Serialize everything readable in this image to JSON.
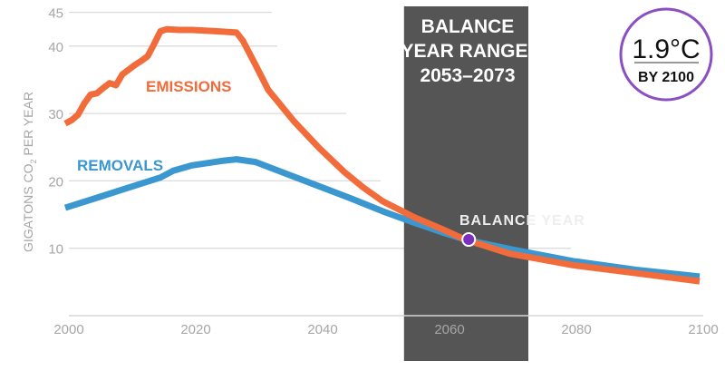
{
  "chart_data": {
    "type": "line",
    "ylabel": "GIGATONS CO",
    "ylabel_sub": "2",
    "ylabel_suffix": " PER YEAR",
    "xlim": [
      2000,
      2100
    ],
    "ylim": [
      0,
      45
    ],
    "xticks": [
      2000,
      2020,
      2040,
      2060,
      2080,
      2100
    ],
    "yticks": [
      10,
      20,
      30,
      40,
      45
    ],
    "grid": true,
    "series": [
      {
        "name": "EMISSIONS",
        "color": "#f26b3a",
        "x": [
          2000,
          2001,
          2002,
          2003,
          2004,
          2005,
          2006,
          2007,
          2008,
          2009,
          2010,
          2011,
          2012,
          2013,
          2014,
          2015,
          2016,
          2018,
          2020,
          2024,
          2027,
          2028,
          2030,
          2032,
          2036,
          2040,
          2044,
          2047,
          2050,
          2055,
          2060,
          2063,
          2070,
          2080,
          2090,
          2100
        ],
        "y": [
          28.5,
          29,
          29.8,
          31.5,
          32.8,
          33,
          33.8,
          34.5,
          34.2,
          35.8,
          36.5,
          37.2,
          37.8,
          38.5,
          40.3,
          42.2,
          42.5,
          42.4,
          42.4,
          42.2,
          42.0,
          40.8,
          37.2,
          33.5,
          28.9,
          24.9,
          21.3,
          19.0,
          17.0,
          14.6,
          12.6,
          11.3,
          9.2,
          7.5,
          6.3,
          5.1
        ]
      },
      {
        "name": "REMOVALS",
        "color": "#3a97cf",
        "x": [
          2000,
          2005,
          2010,
          2015,
          2017,
          2020,
          2025,
          2027,
          2030,
          2035,
          2040,
          2045,
          2050,
          2055,
          2060,
          2063,
          2070,
          2080,
          2090,
          2100
        ],
        "y": [
          16,
          17.5,
          19,
          20.5,
          21.5,
          22.3,
          23,
          23.2,
          22.8,
          21,
          19.2,
          17.4,
          15.5,
          13.8,
          12.2,
          11.3,
          9.9,
          8.1,
          6.8,
          5.8
        ]
      }
    ],
    "balance_range": {
      "label_lines": [
        "BALANCE",
        "YEAR RANGE:",
        "2053–2073"
      ],
      "start": 2053.4,
      "end": 2073
    },
    "balance_year": {
      "label": "BALANCE YEAR",
      "x": 2063.6,
      "y": 11.3,
      "color": "#7b2fbf"
    },
    "badge": {
      "value": "1.9°C",
      "sub": "BY 2100",
      "color": "#8a4fc1"
    }
  }
}
